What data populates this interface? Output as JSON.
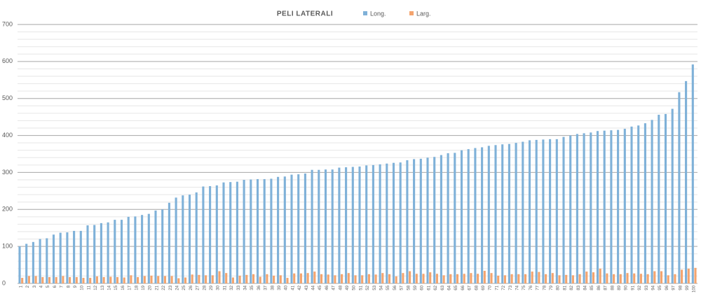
{
  "chart_data": {
    "type": "bar",
    "title": "PELI LATERALI",
    "categories": [
      "1",
      "2",
      "3",
      "4",
      "5",
      "6",
      "7",
      "8",
      "9",
      "10",
      "11",
      "12",
      "13",
      "14",
      "15",
      "16",
      "17",
      "18",
      "19",
      "20",
      "21",
      "22",
      "23",
      "24",
      "25",
      "26",
      "27",
      "28",
      "29",
      "30",
      "31",
      "32",
      "33",
      "34",
      "35",
      "36",
      "37",
      "38",
      "39",
      "40",
      "41",
      "42",
      "43",
      "44",
      "45",
      "46",
      "47",
      "48",
      "49",
      "50",
      "51",
      "52",
      "53",
      "54",
      "55",
      "56",
      "57",
      "58",
      "59",
      "60",
      "61",
      "62",
      "63",
      "64",
      "65",
      "66",
      "67",
      "68",
      "69",
      "70",
      "71",
      "72",
      "73",
      "74",
      "75",
      "76",
      "77",
      "78",
      "79",
      "80",
      "81",
      "82",
      "83",
      "84",
      "85",
      "86",
      "87",
      "88",
      "89",
      "90",
      "91",
      "92",
      "93",
      "94",
      "95",
      "96",
      "97",
      "98",
      "99",
      "100"
    ],
    "series": [
      {
        "name": "Long.",
        "color": "#7fb1d8",
        "values": [
          100,
          107,
          112,
          120,
          122,
          132,
          137,
          138,
          142,
          142,
          157,
          158,
          163,
          165,
          172,
          172,
          180,
          181,
          185,
          188,
          197,
          200,
          218,
          232,
          238,
          240,
          246,
          262,
          263,
          265,
          273,
          274,
          275,
          280,
          281,
          282,
          282,
          283,
          288,
          289,
          294,
          295,
          297,
          307,
          307,
          308,
          308,
          313,
          314,
          315,
          316,
          319,
          320,
          322,
          324,
          326,
          327,
          333,
          336,
          337,
          340,
          342,
          347,
          352,
          353,
          360,
          363,
          366,
          368,
          372,
          374,
          376,
          377,
          380,
          383,
          387,
          388,
          389,
          390,
          390,
          396,
          400,
          404,
          406,
          408,
          412,
          413,
          414,
          415,
          418,
          424,
          427,
          433,
          442,
          456,
          458,
          472,
          517,
          547,
          592
        ]
      },
      {
        "name": "Larg.",
        "color": "#f4a46e",
        "values": [
          15,
          20,
          20,
          17,
          17,
          17,
          20,
          17,
          17,
          15,
          15,
          19,
          17,
          18,
          17,
          16,
          22,
          17,
          20,
          21,
          20,
          20,
          20,
          14,
          16,
          24,
          23,
          22,
          22,
          33,
          28,
          16,
          21,
          23,
          25,
          18,
          25,
          21,
          22,
          15,
          27,
          27,
          28,
          32,
          25,
          24,
          22,
          25,
          28,
          22,
          22,
          25,
          24,
          28,
          25,
          19,
          28,
          33,
          26,
          26,
          30,
          26,
          22,
          25,
          25,
          26,
          28,
          26,
          34,
          28,
          21,
          22,
          25,
          25,
          25,
          32,
          31,
          25,
          28,
          22,
          23,
          22,
          25,
          32,
          30,
          40,
          27,
          25,
          25,
          28,
          27,
          26,
          25,
          33,
          33,
          22,
          25,
          37,
          40,
          42
        ]
      }
    ],
    "ylim": [
      0,
      700
    ],
    "yticks": [
      0,
      100,
      200,
      300,
      400,
      500,
      600,
      700
    ],
    "minor_yticks": [
      20,
      40,
      60,
      80,
      120,
      140,
      160,
      180,
      220,
      240,
      260,
      280,
      320,
      340,
      360,
      380,
      420,
      440,
      460,
      480,
      520,
      540,
      560,
      580,
      620,
      640,
      660,
      680
    ],
    "grid": true,
    "legend": "top"
  }
}
